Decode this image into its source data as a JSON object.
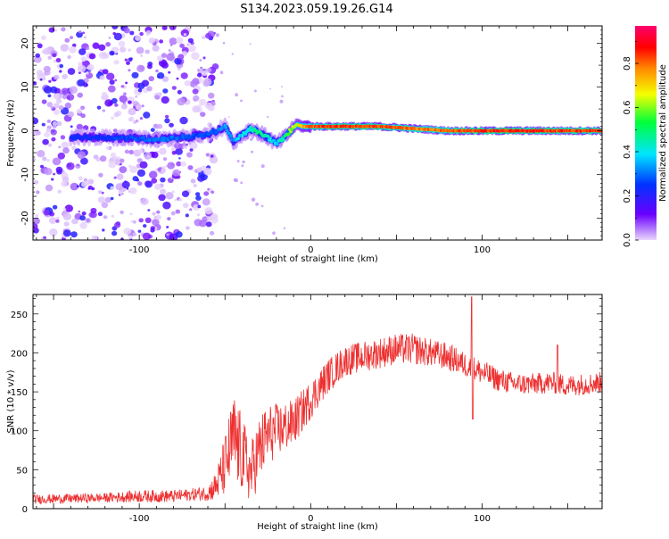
{
  "title": "S134.2023.059.19.26.G14",
  "chart_data": [
    {
      "type": "heatmap",
      "xlabel": "Height of straight line (km)",
      "ylabel": "Frequency (Hz)",
      "xlim": [
        -162,
        170
      ],
      "ylim": [
        -25,
        24
      ],
      "xticks": [
        -100,
        0,
        100
      ],
      "yticks": [
        -20,
        -10,
        0,
        10,
        20
      ],
      "colorbar": {
        "label": "Normalized spectral amplitude",
        "range": [
          0,
          0.97
        ],
        "ticks": [
          "0.0",
          "0.2",
          "0.4",
          "0.6",
          "0.8"
        ],
        "colors": [
          "#e9d6fb",
          "#6a00ff",
          "#0033ff",
          "#00e5ff",
          "#00ff3a",
          "#f5ff00",
          "#ff8a00",
          "#ff0000",
          "#ff006e"
        ]
      },
      "trace": {
        "x": [
          -130,
          -110,
          -90,
          -75,
          -62,
          -55,
          -50,
          -45,
          -40,
          -35,
          -30,
          -25,
          -20,
          -15,
          -12,
          -8,
          -5,
          0,
          20,
          40,
          60,
          80,
          100,
          120,
          140,
          168
        ],
        "freq": [
          -1.5,
          -1.6,
          -2.0,
          -1.5,
          -1.0,
          0.0,
          1.0,
          -2.5,
          -1.0,
          0.5,
          -0.5,
          -1.5,
          -3.0,
          -1.5,
          0.0,
          1.5,
          1.0,
          1.0,
          1.0,
          1.0,
          0.5,
          0.0,
          0.0,
          0.0,
          0.0,
          0.0
        ],
        "amp": [
          0.25,
          0.28,
          0.32,
          0.3,
          0.28,
          0.3,
          0.35,
          0.35,
          0.4,
          0.45,
          0.5,
          0.45,
          0.4,
          0.5,
          0.6,
          0.65,
          0.75,
          0.85,
          0.9,
          0.88,
          0.82,
          0.85,
          0.9,
          0.92,
          0.9,
          0.88
        ]
      }
    },
    {
      "type": "line",
      "xlabel": "Height of straight line (km)",
      "ylabel": "SNR (10 * v/v)",
      "xlim": [
        -162,
        170
      ],
      "ylim": [
        0,
        275
      ],
      "xticks": [
        -100,
        0,
        100
      ],
      "yticks": [
        0,
        50,
        100,
        150,
        200,
        250
      ],
      "color": "#ee3030",
      "series": [
        {
          "x": [
            -162,
            -140,
            -120,
            -100,
            -80,
            -70,
            -60,
            -55,
            -50,
            -45,
            -40,
            -35,
            -30,
            -25,
            -20,
            -10,
            0,
            10,
            20,
            30,
            40,
            50,
            60,
            70,
            80,
            90,
            100,
            110,
            120,
            130,
            140,
            150,
            160,
            170
          ],
          "center": [
            12,
            13,
            14,
            16,
            16,
            18,
            20,
            30,
            55,
            90,
            70,
            45,
            75,
            95,
            100,
            110,
            140,
            170,
            190,
            195,
            200,
            205,
            205,
            200,
            195,
            185,
            175,
            165,
            160,
            160,
            162,
            158,
            160,
            162
          ],
          "spread": [
            6,
            6,
            6,
            8,
            8,
            8,
            10,
            20,
            40,
            60,
            50,
            40,
            45,
            40,
            35,
            30,
            25,
            22,
            20,
            20,
            20,
            20,
            20,
            18,
            18,
            16,
            16,
            15,
            14,
            14,
            14,
            14,
            14,
            14
          ]
        }
      ]
    }
  ]
}
